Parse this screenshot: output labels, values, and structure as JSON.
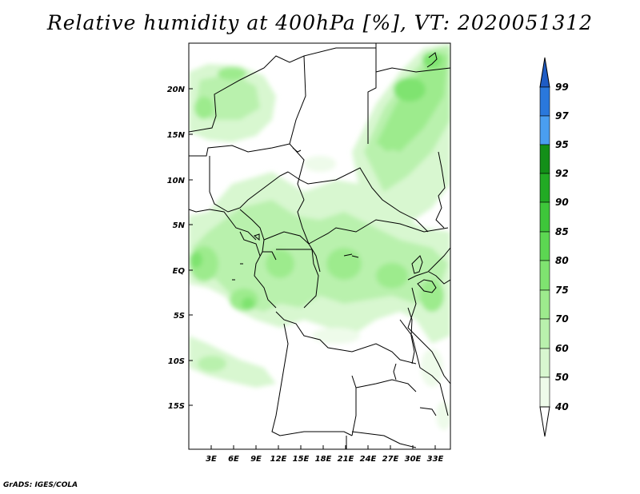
{
  "title": "Relative humidity at 400hPa [%], VT: 2020051312",
  "credit": "GrADS: IGES/COLA",
  "axes": {
    "lat_labels": [
      "20N",
      "15N",
      "10N",
      "5N",
      "EQ",
      "5S",
      "10S",
      "15S"
    ],
    "lon_labels": [
      "3E",
      "6E",
      "9E",
      "12E",
      "15E",
      "18E",
      "21E",
      "24E",
      "27E",
      "30E",
      "33E"
    ]
  },
  "colorbar": {
    "levels": [
      {
        "label": "40",
        "color": "#eefbea"
      },
      {
        "label": "50",
        "color": "#d8f7d0"
      },
      {
        "label": "60",
        "color": "#b9f1ad"
      },
      {
        "label": "70",
        "color": "#9deb8d"
      },
      {
        "label": "75",
        "color": "#7fe370"
      },
      {
        "label": "80",
        "color": "#5cd752"
      },
      {
        "label": "85",
        "color": "#3ec63a"
      },
      {
        "label": "90",
        "color": "#22aa24"
      },
      {
        "label": "92",
        "color": "#138f18"
      },
      {
        "label": "95",
        "color": "#4a9ef0"
      },
      {
        "label": "97",
        "color": "#2a78dc"
      },
      {
        "label": "99",
        "color": "#1f5cc4"
      }
    ]
  }
}
